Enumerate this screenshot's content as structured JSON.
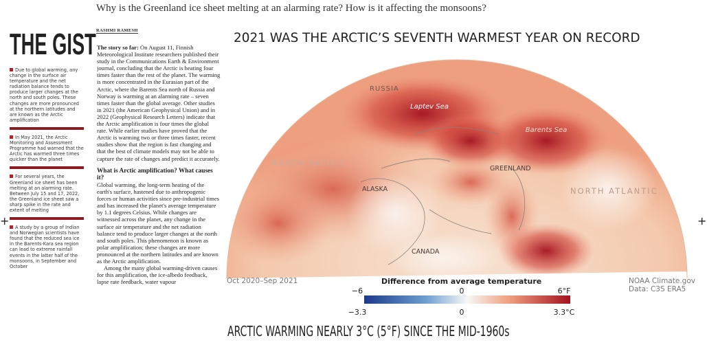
{
  "header": {
    "headline": "Why is the Greenland ice sheet melting at an alarming rate? How is it affecting the monsoons?",
    "byline": "RASHMI RAMESH"
  },
  "gist": {
    "title": "THE GIST",
    "bullets": [
      "Due to global warming, any change in the surface air temperature and the net radiation balance tends to produce larger changes at the north and south poles. These changes are more pronounced at the northern latitudes and are known as the Arctic amplification",
      "In May 2021, the Arctic Monitoring and Assessment Programme had warned that the Arctic has warmed three times quicker than the planet",
      "For several years, the Greenland ice sheet has been melting at an alarming rate. Between July 15 and 17, 2022, the Greenland ice sheet saw a sharp spike in the rate and extent of melting",
      "A study by a group of Indian and Norwegian scientists have found that the reduced sea ice in the Barents-Kara sea region can lead to extreme rainfall events in the latter half of the monsoons, in September and October"
    ]
  },
  "article": {
    "lead": "The story so far:",
    "intro": "On August 11, Finnish Meteorological Institute researchers published their study in the Communications Earth & Environment journal, concluding that the Arctic is heating four times faster than the rest of the planet. The warming is more concentrated in the Eurasian part of the Arctic, where the Barents Sea north of Russia and Norway is warming at an alarming rate – seven times faster than the global average. Other studies in 2021 (the American Geophysical Union) and in 2022 (Geophysical Research Letters) indicate that the Arctic amplification is four times the global rate. While earlier studies have proved that the Arctic is warming two or three times faster, recent studies show that the region is fast changing and that the best of climate models may not be able to capture the rate of changes and predict it accurately.",
    "subhead": "What is Arctic amplification? What causes it?",
    "paragraphs": [
      "Global warming, the long-term heating of the earth's surface, hastened due to anthropogenic forces or human activities since pre-industrial times and has increased the planet's average temperature by 1.1 degrees Celsius. While changes are witnessed across the planet, any change in the surface air temperature and the net radiation balance tend to produce larger changes at the north and south poles. This phenomenon is known as polar amplification; these changes are more pronounced at the northern latitudes and are known as the Arctic amplification.",
      "Among the many global warming-driven causes for this amplification, the ice-albedo feedback, lapse rate feedback, water vapour"
    ]
  },
  "graphic": {
    "title": "2021 WAS THE ARCTIC’S SEVENTH WARMEST YEAR ON RECORD",
    "map_labels": {
      "russia": "RUSSIA",
      "laptev": "Laptev Sea",
      "barents": "Barents Sea",
      "north_pacific": "NORTH PACIFIC",
      "greenland": "GREENLAND",
      "alaska": "ALASKA",
      "north_atlantic": "NORTH ATLANTIC",
      "canada": "CANADA"
    },
    "period": "Oct 2020–Sep 2021",
    "legend_title": "Difference from average temperature",
    "scale_f": [
      "−6",
      "0",
      "6°F"
    ],
    "scale_c": [
      "−3.3",
      "0",
      "3.3°C"
    ],
    "credit": "NOAA Climate.gov",
    "source": "Data: C3S ERA5",
    "bottom_title": "ARCTIC WARMING NEARLY 3°C (5°F) SINCE THE MID-1960s"
  }
}
